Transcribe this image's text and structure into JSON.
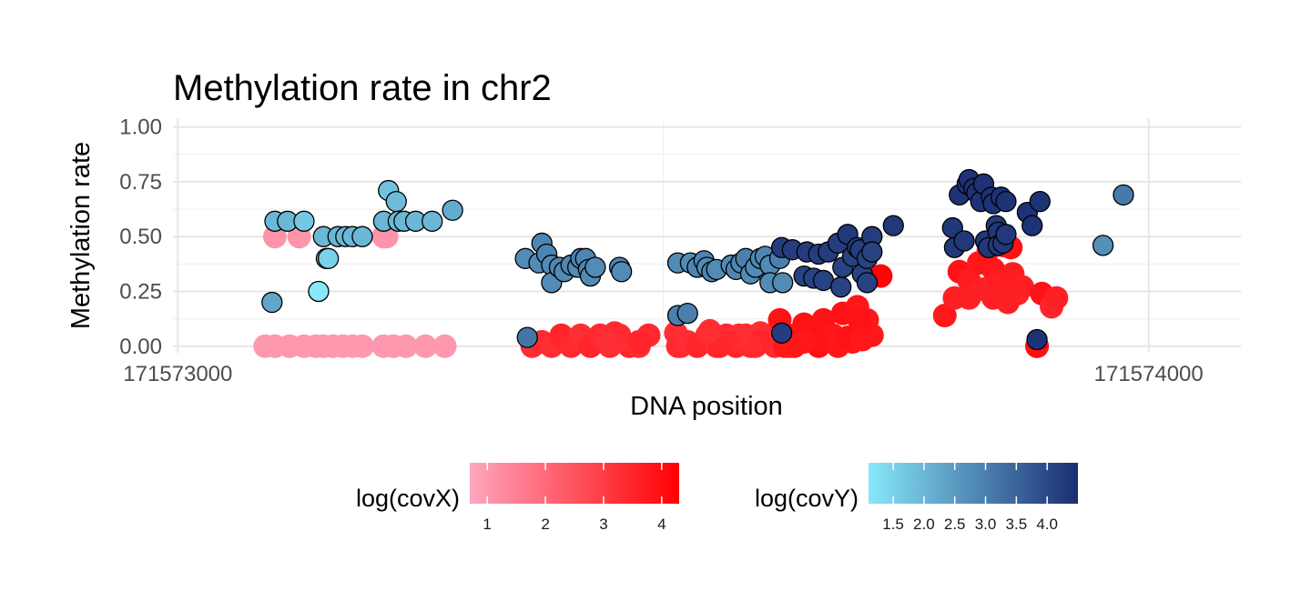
{
  "chart_data": {
    "type": "scatter",
    "title": "Methylation rate in chr2",
    "xlabel": "DNA position",
    "ylabel": "Methylation rate",
    "xlim": [
      171572995,
      171574095
    ],
    "ylim": [
      -0.03,
      1.04
    ],
    "xticks": [
      171573000,
      171574000
    ],
    "xtick_labels": [
      "171573000",
      "171574000"
    ],
    "yticks": [
      0,
      0.25,
      0.5,
      0.75,
      1
    ],
    "ytick_labels": [
      "0.00",
      "0.25",
      "0.50",
      "0.75",
      "1.00"
    ],
    "grid": true,
    "legend_position": "bottom",
    "series": [
      {
        "name": "log(covX)",
        "color_low": "#fda6be",
        "color_high": "#ff0000",
        "points": [
          [
            171573100,
            0.5,
            1.1
          ],
          [
            171573125,
            0.5,
            1.1
          ],
          [
            171573212,
            0.5,
            1.1
          ],
          [
            171573215,
            0.5,
            1.1
          ],
          [
            171573090,
            0,
            1.0
          ],
          [
            171573100,
            0,
            1.0
          ],
          [
            171573115,
            0,
            1.0
          ],
          [
            171573130,
            0,
            1.0
          ],
          [
            171573142,
            0,
            1.0
          ],
          [
            171573150,
            0,
            1.0
          ],
          [
            171573160,
            0,
            1.0
          ],
          [
            171573170,
            0,
            1.0
          ],
          [
            171573180,
            0,
            1.0
          ],
          [
            171573190,
            0,
            1.0
          ],
          [
            171573212,
            0,
            1.0
          ],
          [
            171573222,
            0,
            1.0
          ],
          [
            171573235,
            0,
            1.0
          ],
          [
            171573255,
            0,
            1.0
          ],
          [
            171573275,
            0,
            1.0
          ],
          [
            171573365,
            0,
            3.3
          ],
          [
            171573375,
            0.02,
            3.4
          ],
          [
            171573385,
            0,
            3.3
          ],
          [
            171573395,
            0.05,
            3.5
          ],
          [
            171573405,
            0,
            3.4
          ],
          [
            171573415,
            0.05,
            3.3
          ],
          [
            171573425,
            0,
            3.5
          ],
          [
            171573435,
            0.05,
            3.4
          ],
          [
            171573445,
            0,
            3.3
          ],
          [
            171573455,
            0.05,
            3.4
          ],
          [
            171573465,
            0,
            3.5
          ],
          [
            171573452,
            0.02,
            3.3
          ],
          [
            171573475,
            0,
            3.3
          ],
          [
            171573485,
            0.05,
            3.4
          ],
          [
            171573475,
            0.02,
            3.5
          ],
          [
            171573450,
            0.06,
            3.4
          ],
          [
            171573440,
            0.03,
            3.3
          ],
          [
            171573518,
            0,
            3.4
          ],
          [
            171573513,
            0.06,
            3.3
          ],
          [
            171573515,
            0,
            3.4
          ],
          [
            171573525,
            0.02,
            3.3
          ],
          [
            171573535,
            0,
            3.5
          ],
          [
            171573545,
            0.05,
            3.4
          ],
          [
            171573555,
            0,
            3.3
          ],
          [
            171573565,
            0.05,
            3.4
          ],
          [
            171573575,
            0,
            3.5
          ],
          [
            171573585,
            0.05,
            3.4
          ],
          [
            171573595,
            0,
            3.3
          ],
          [
            171573605,
            0.05,
            3.5
          ],
          [
            171573615,
            0,
            3.4
          ],
          [
            171573625,
            0.03,
            3.3
          ],
          [
            171573630,
            0,
            3.4
          ],
          [
            171573600,
            0.06,
            3.3
          ],
          [
            171573600,
            0.02,
            3.5
          ],
          [
            171573590,
            0,
            3.4
          ],
          [
            171573578,
            0.05,
            3.3
          ],
          [
            171573568,
            0.02,
            3.4
          ],
          [
            171573558,
            0,
            3.5
          ],
          [
            171573548,
            0.07,
            3.3
          ],
          [
            171573620,
            0.05,
            3.4
          ],
          [
            171573620,
            0.12,
            3.9
          ],
          [
            171573625,
            0,
            3.8
          ],
          [
            171573635,
            0.05,
            3.9
          ],
          [
            171573645,
            0.1,
            3.9
          ],
          [
            171573655,
            0.02,
            3.8
          ],
          [
            171573665,
            0.12,
            3.9
          ],
          [
            171573675,
            0.05,
            3.8
          ],
          [
            171573685,
            0.15,
            3.9
          ],
          [
            171573695,
            0.02,
            3.8
          ],
          [
            171573705,
            0.1,
            3.9
          ],
          [
            171573715,
            0.05,
            3.8
          ],
          [
            171573700,
            0.18,
            3.8
          ],
          [
            171573710,
            0.12,
            3.8
          ],
          [
            171573655,
            0.08,
            3.9
          ],
          [
            171573635,
            0,
            3.8
          ],
          [
            171573660,
            0,
            3.9
          ],
          [
            171573645,
            0.02,
            3.8
          ],
          [
            171573680,
            0,
            3.8
          ],
          [
            171573690,
            0.04,
            3.9
          ],
          [
            171573702,
            0.12,
            3.9
          ],
          [
            171573705,
            0.03,
            3.8
          ],
          [
            171573724,
            0.32,
            4.2
          ],
          [
            171573790,
            0.14,
            3.8
          ],
          [
            171573800,
            0.22,
            3.6
          ],
          [
            171573805,
            0.34,
            3.9
          ],
          [
            171573815,
            0.3,
            3.7
          ],
          [
            171573815,
            0.22,
            3.6
          ],
          [
            171573825,
            0.38,
            3.8
          ],
          [
            171573830,
            0.26,
            3.6
          ],
          [
            171573835,
            0.44,
            3.9
          ],
          [
            171573840,
            0.35,
            3.8
          ],
          [
            171573840,
            0.22,
            3.6
          ],
          [
            171573845,
            0.3,
            3.7
          ],
          [
            171573850,
            0.28,
            3.6
          ],
          [
            171573855,
            0.2,
            3.6
          ],
          [
            171573860,
            0.33,
            3.7
          ],
          [
            171573865,
            0.24,
            3.6
          ],
          [
            171573870,
            0.27,
            3.6
          ],
          [
            171573850,
            0.46,
            3.8
          ],
          [
            171573858,
            0.45,
            3.9
          ],
          [
            171573890,
            0.24,
            3.9
          ],
          [
            171573900,
            0.18,
            3.5
          ],
          [
            171573905,
            0.22,
            3.6
          ],
          [
            171573885,
            0,
            4.3
          ],
          [
            171573885,
            0,
            4.0
          ]
        ]
      },
      {
        "name": "log(covY)",
        "color_low": "#87e8fa",
        "color_high": "#1b2d72",
        "points": [
          [
            171573097,
            0.2,
            2.3
          ],
          [
            171573145,
            0.25,
            1.1
          ],
          [
            171573153,
            0.4,
            1.7
          ],
          [
            171573155,
            0.4,
            1.5
          ],
          [
            171573100,
            0.57,
            2.0
          ],
          [
            171573113,
            0.57,
            2.0
          ],
          [
            171573130,
            0.57,
            1.7
          ],
          [
            171573150,
            0.5,
            2.0
          ],
          [
            171573165,
            0.5,
            2.0
          ],
          [
            171573173,
            0.5,
            2.0
          ],
          [
            171573180,
            0.5,
            2.0
          ],
          [
            171573190,
            0.5,
            2.0
          ],
          [
            171573212,
            0.57,
            2.0
          ],
          [
            171573217,
            0.71,
            1.8
          ],
          [
            171573225,
            0.66,
            1.9
          ],
          [
            171573227,
            0.57,
            2.0
          ],
          [
            171573233,
            0.57,
            2.0
          ],
          [
            171573245,
            0.57,
            2.0
          ],
          [
            171573262,
            0.57,
            2.0
          ],
          [
            171573283,
            0.62,
            2.2
          ],
          [
            171573358,
            0.4,
            2.8
          ],
          [
            171573372,
            0.38,
            2.8
          ],
          [
            171573375,
            0.47,
            2.9
          ],
          [
            171573380,
            0.42,
            2.9
          ],
          [
            171573385,
            0.37,
            2.8
          ],
          [
            171573385,
            0.29,
            2.8
          ],
          [
            171573393,
            0.36,
            2.9
          ],
          [
            171573398,
            0.34,
            2.8
          ],
          [
            171573405,
            0.37,
            2.9
          ],
          [
            171573412,
            0.36,
            2.8
          ],
          [
            171573415,
            0.4,
            3.0
          ],
          [
            171573420,
            0.4,
            2.9
          ],
          [
            171573423,
            0.35,
            2.9
          ],
          [
            171573425,
            0.32,
            2.8
          ],
          [
            171573430,
            0.36,
            2.8
          ],
          [
            171573455,
            0.36,
            2.9
          ],
          [
            171573457,
            0.34,
            2.8
          ],
          [
            171573360,
            0.04,
            3.2
          ],
          [
            171573515,
            0.38,
            2.8
          ],
          [
            171573528,
            0.38,
            2.8
          ],
          [
            171573535,
            0.36,
            2.9
          ],
          [
            171573542,
            0.39,
            2.9
          ],
          [
            171573545,
            0.36,
            2.8
          ],
          [
            171573550,
            0.34,
            2.9
          ],
          [
            171573555,
            0.35,
            2.8
          ],
          [
            171573570,
            0.37,
            2.8
          ],
          [
            171573575,
            0.35,
            2.9
          ],
          [
            171573580,
            0.38,
            2.9
          ],
          [
            171573585,
            0.4,
            3.0
          ],
          [
            171573590,
            0.33,
            2.8
          ],
          [
            171573595,
            0.36,
            2.8
          ],
          [
            171573600,
            0.4,
            2.9
          ],
          [
            171573605,
            0.41,
            2.9
          ],
          [
            171573610,
            0.37,
            2.8
          ],
          [
            171573610,
            0.29,
            2.8
          ],
          [
            171573620,
            0.4,
            3.0
          ],
          [
            171573623,
            0.29,
            2.8
          ],
          [
            171573515,
            0.14,
            3.0
          ],
          [
            171573525,
            0.15,
            3.0
          ],
          [
            171573622,
            0.45,
            4.2
          ],
          [
            171573633,
            0.44,
            4.2
          ],
          [
            171573645,
            0.32,
            4.1
          ],
          [
            171573648,
            0.43,
            4.2
          ],
          [
            171573655,
            0.31,
            4.1
          ],
          [
            171573660,
            0.42,
            4.2
          ],
          [
            171573665,
            0.3,
            4.1
          ],
          [
            171573670,
            0.43,
            4.2
          ],
          [
            171573680,
            0.47,
            4.2
          ],
          [
            171573683,
            0.27,
            4.1
          ],
          [
            171573685,
            0.36,
            4.1
          ],
          [
            171573690,
            0.51,
            4.3
          ],
          [
            171573695,
            0.41,
            4.1
          ],
          [
            171573700,
            0.45,
            4.2
          ],
          [
            171573703,
            0.44,
            4.2
          ],
          [
            171573705,
            0.33,
            4.1
          ],
          [
            171573710,
            0.4,
            4.1
          ],
          [
            171573710,
            0.29,
            4.1
          ],
          [
            171573715,
            0.5,
            4.2
          ],
          [
            171573715,
            0.43,
            4.1
          ],
          [
            171573737,
            0.55,
            4.3
          ],
          [
            171573622,
            0.06,
            4.2
          ],
          [
            171573798,
            0.54,
            4.3
          ],
          [
            171573800,
            0.45,
            4.3
          ],
          [
            171573805,
            0.69,
            4.4
          ],
          [
            171573810,
            0.48,
            4.3
          ],
          [
            171573813,
            0.74,
            4.4
          ],
          [
            171573815,
            0.76,
            4.4
          ],
          [
            171573820,
            0.72,
            4.4
          ],
          [
            171573823,
            0.7,
            4.4
          ],
          [
            171573827,
            0.66,
            4.4
          ],
          [
            171573830,
            0.74,
            4.4
          ],
          [
            171573832,
            0.48,
            4.3
          ],
          [
            171573835,
            0.45,
            4.3
          ],
          [
            171573838,
            0.68,
            4.4
          ],
          [
            171573840,
            0.65,
            4.4
          ],
          [
            171573843,
            0.55,
            4.3
          ],
          [
            171573845,
            0.52,
            4.3
          ],
          [
            171573845,
            0.46,
            4.3
          ],
          [
            171573848,
            0.68,
            4.4
          ],
          [
            171573850,
            0.47,
            4.3
          ],
          [
            171573853,
            0.51,
            4.3
          ],
          [
            171573853,
            0.66,
            4.4
          ],
          [
            171573875,
            0.61,
            4.4
          ],
          [
            171573880,
            0.55,
            4.4
          ],
          [
            171573888,
            0.66,
            4.4
          ],
          [
            171573885,
            0.03,
            4.4
          ],
          [
            171573953,
            0.46,
            2.7
          ],
          [
            171573974,
            0.69,
            3.1
          ]
        ]
      }
    ],
    "legends": [
      {
        "title": "log(covX)",
        "ticks": [
          1,
          2,
          3,
          4
        ],
        "tick_labels": [
          "1",
          "2",
          "3",
          "4"
        ],
        "min": 0.7,
        "max": 4.3
      },
      {
        "title": "log(covY)",
        "ticks": [
          1.5,
          2.0,
          2.5,
          3.0,
          3.5,
          4.0
        ],
        "tick_labels": [
          "1.5",
          "2.0",
          "2.5",
          "3.0",
          "3.5",
          "4.0"
        ],
        "min": 1.1,
        "max": 4.5
      }
    ]
  }
}
